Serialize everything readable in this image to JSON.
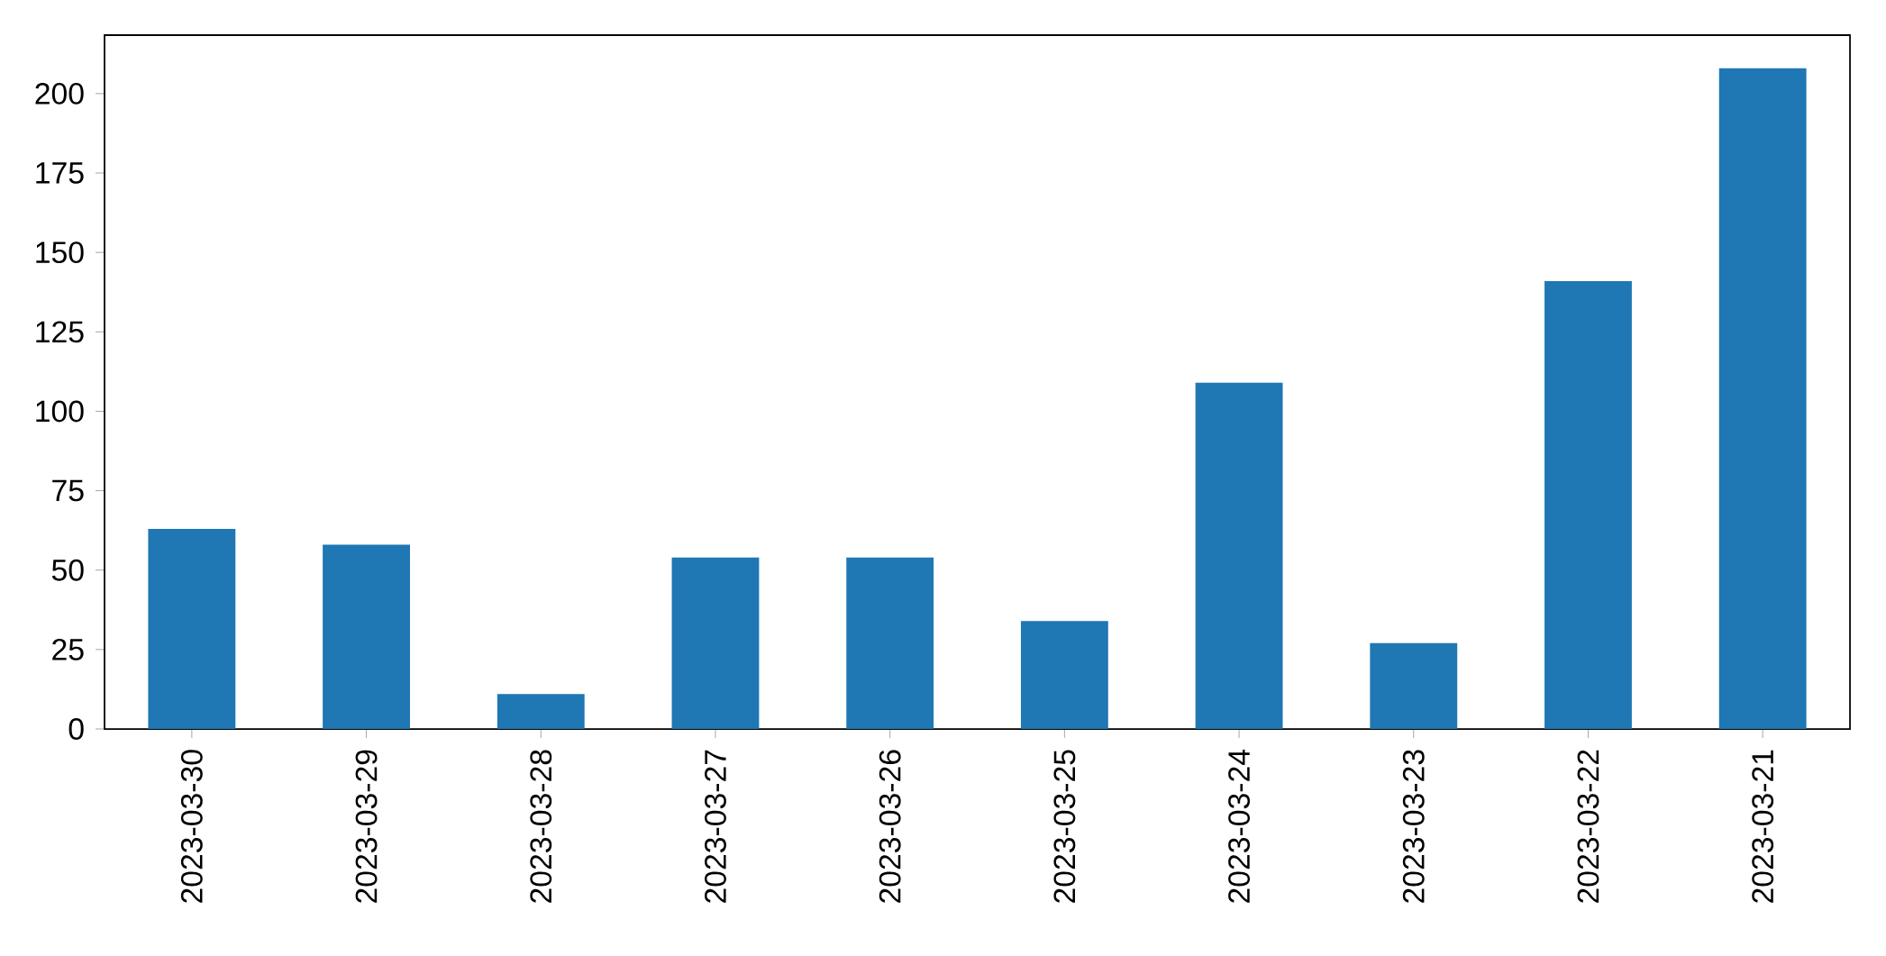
{
  "chart_data": {
    "type": "bar",
    "categories": [
      "2023-03-30",
      "2023-03-29",
      "2023-03-28",
      "2023-03-27",
      "2023-03-26",
      "2023-03-25",
      "2023-03-24",
      "2023-03-23",
      "2023-03-22",
      "2023-03-21"
    ],
    "values": [
      63,
      58,
      11,
      54,
      54,
      34,
      109,
      27,
      141,
      208
    ],
    "color": "#1f77b4",
    "ylim": [
      0,
      218.4
    ],
    "yticks": [
      0,
      25,
      50,
      75,
      100,
      125,
      150,
      175,
      200
    ]
  }
}
